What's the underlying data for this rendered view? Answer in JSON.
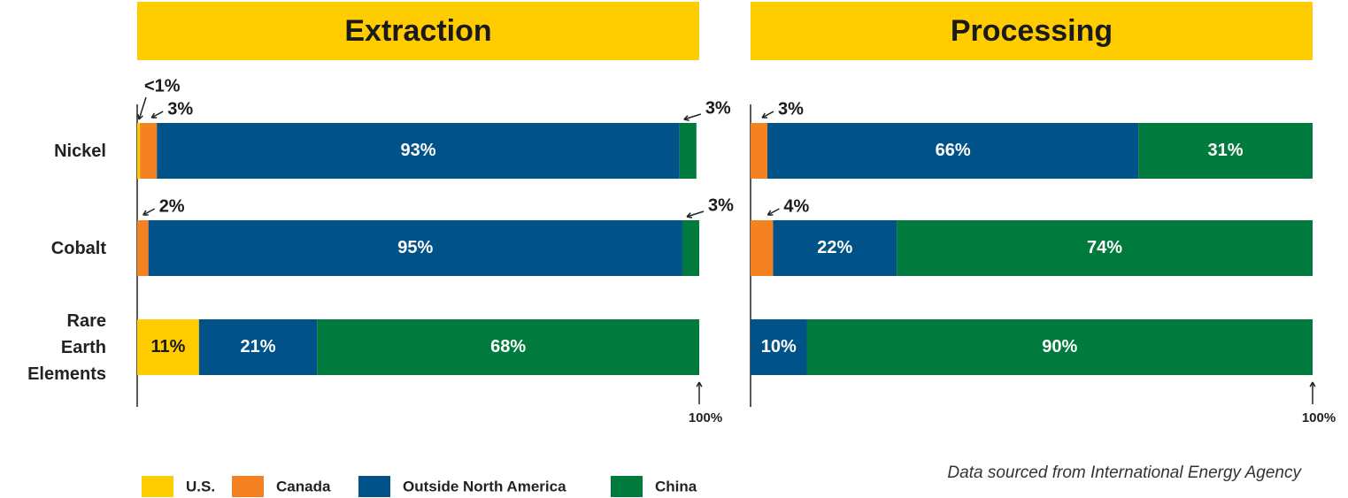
{
  "chart_data": [
    {
      "type": "bar",
      "orientation": "horizontal",
      "stacked": true,
      "title": "Extraction",
      "categories": [
        "Nickel",
        "Cobalt",
        "Rare Earth Elements"
      ],
      "xlim": [
        0,
        100
      ],
      "annotation": "100%",
      "series": [
        {
          "name": "U.S.",
          "color": "#FFCC00",
          "values": [
            0.5,
            0,
            11
          ],
          "value_labels": [
            "<1%",
            null,
            "11%"
          ]
        },
        {
          "name": "Canada",
          "color": "#F58220",
          "values": [
            3,
            2,
            0
          ],
          "value_labels": [
            "3%",
            "2%",
            null
          ]
        },
        {
          "name": "Outside North America",
          "color": "#005288",
          "values": [
            93,
            95,
            21
          ],
          "value_labels": [
            "93%",
            "95%",
            "21%"
          ]
        },
        {
          "name": "China",
          "color": "#007A3D",
          "values": [
            3,
            3,
            68
          ],
          "value_labels": [
            "3%",
            "3%",
            "68%"
          ]
        }
      ]
    },
    {
      "type": "bar",
      "orientation": "horizontal",
      "stacked": true,
      "title": "Processing",
      "xlim": [
        0,
        100
      ],
      "annotation": "100%",
      "series": [
        {
          "values": [
            0,
            0,
            0
          ],
          "value_labels": [
            null,
            null,
            null
          ]
        },
        {
          "values": [
            3,
            4,
            0
          ],
          "value_labels": [
            "3%",
            "4%",
            null
          ]
        },
        {
          "values": [
            66,
            22,
            10
          ],
          "value_labels": [
            "66%",
            "22%",
            "10%"
          ]
        },
        {
          "values": [
            31,
            74,
            90
          ],
          "value_labels": [
            "31%",
            "74%",
            "90%"
          ]
        }
      ]
    }
  ],
  "source": "Data sourced from International Energy Agency"
}
